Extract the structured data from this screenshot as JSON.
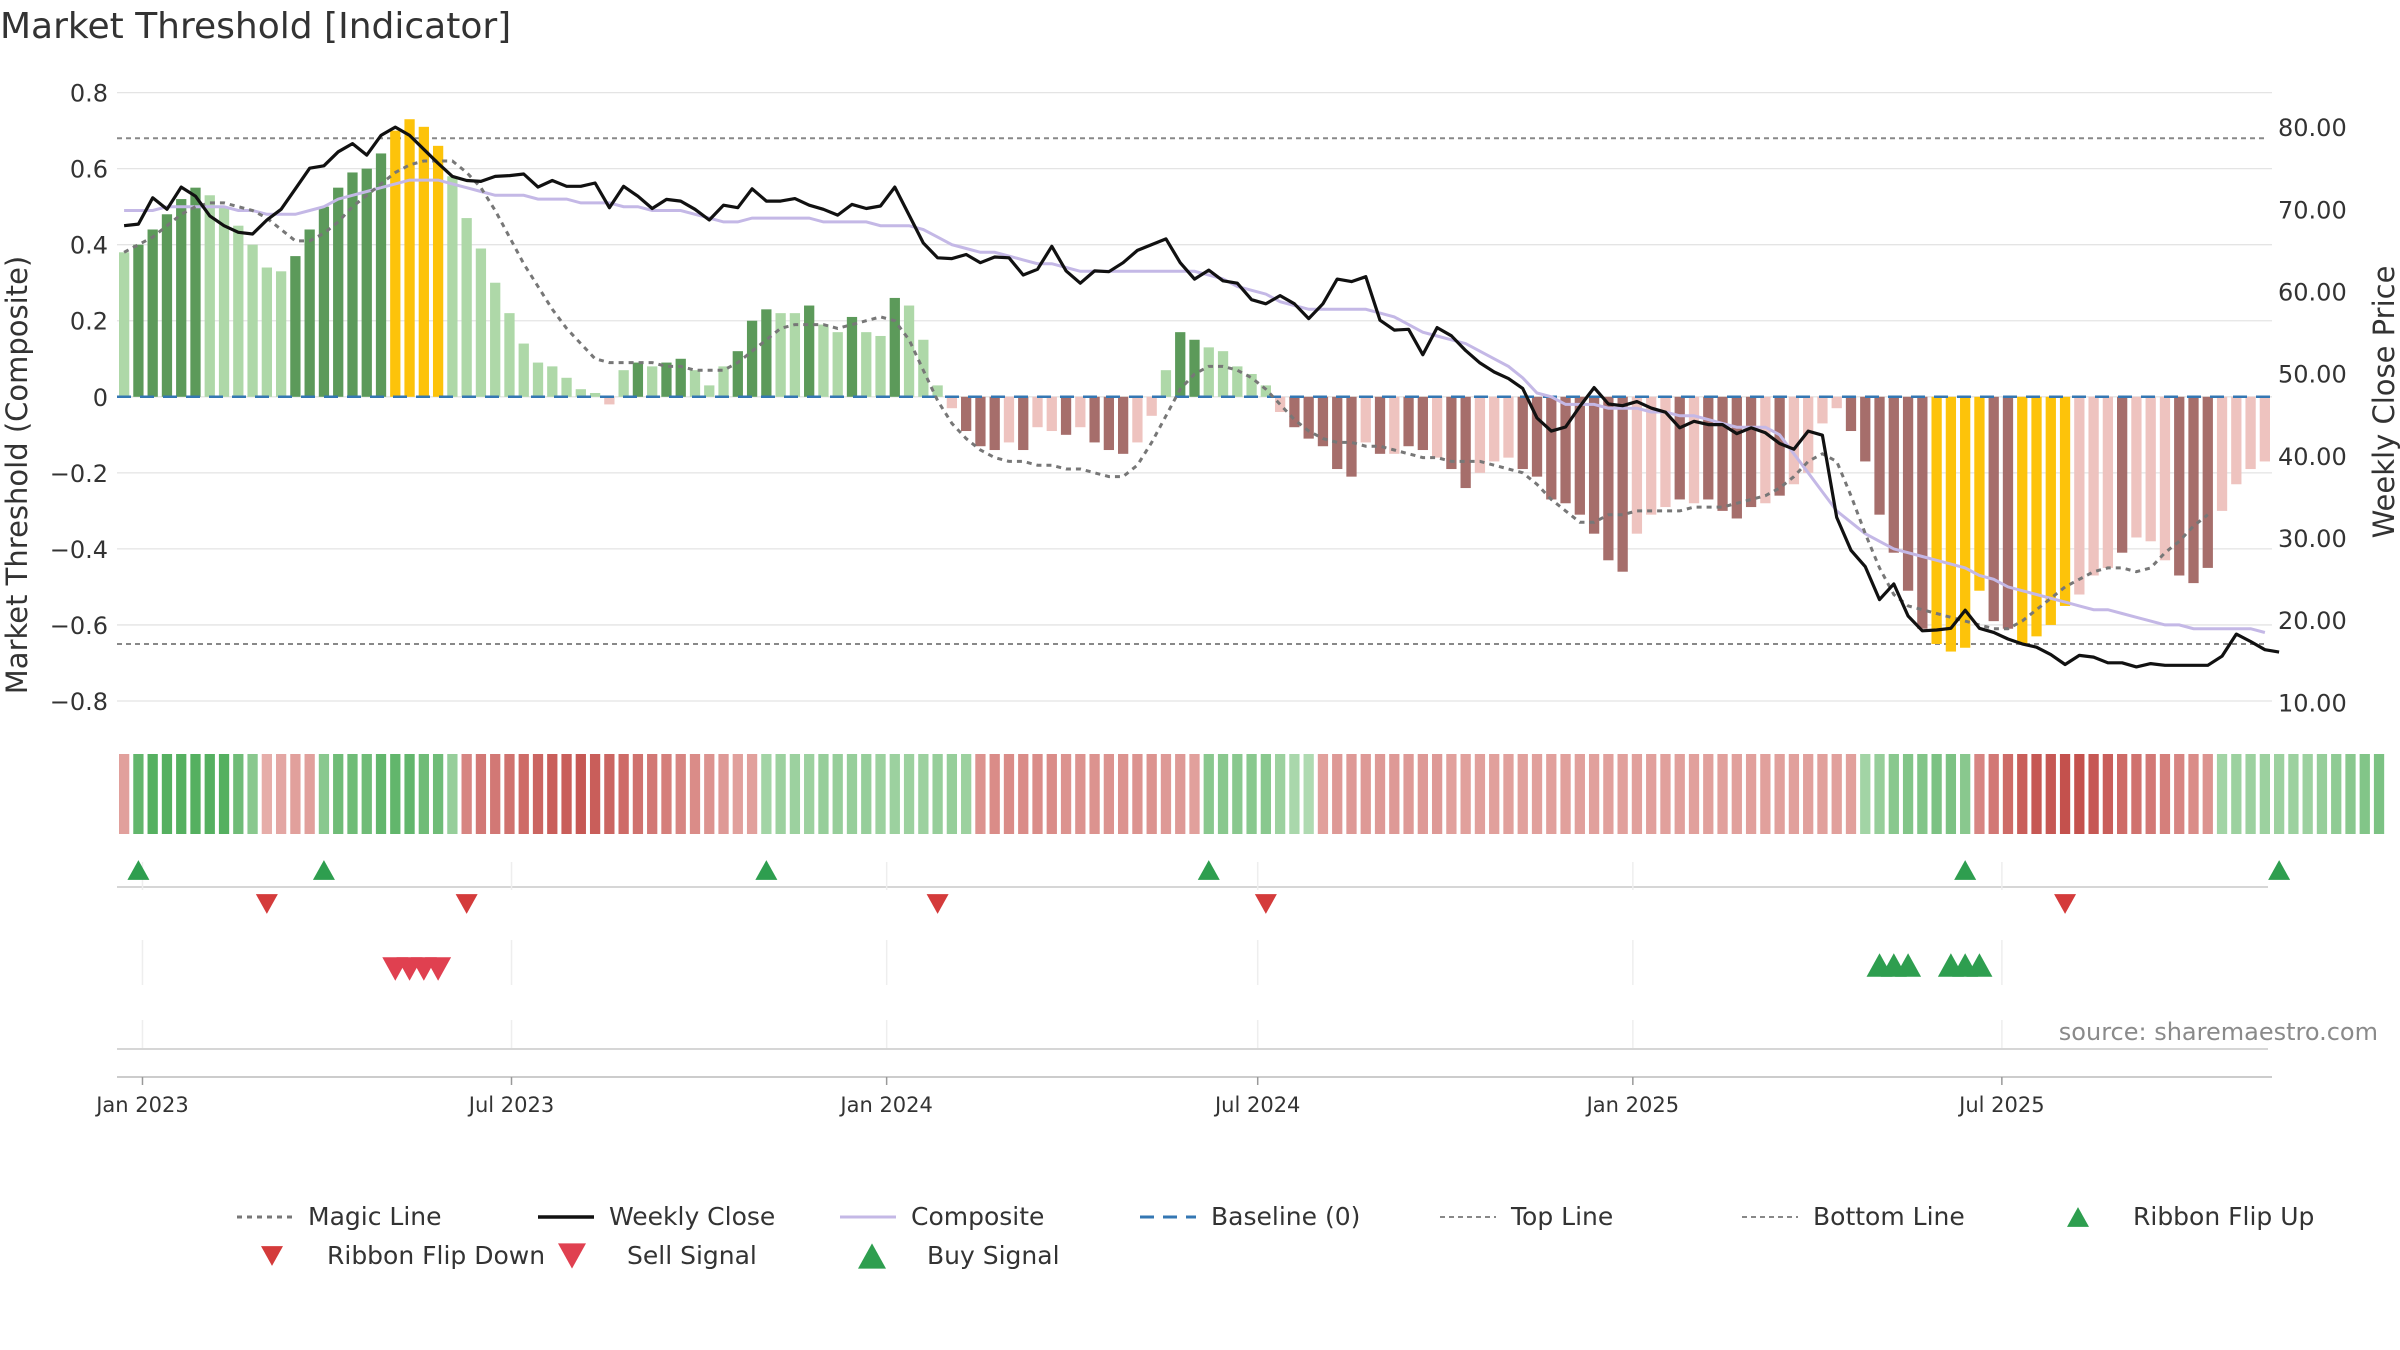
{
  "chart_data": {
    "type": "bar",
    "title": "Market Threshold [Indicator]",
    "ylabel_left": "Market Threshold (Composite)",
    "ylabel_right": "Weekly Close Price",
    "source_note": "source: sharemaestro.com",
    "ylim_left": [
      -0.85,
      0.82
    ],
    "ylim_right": [
      7.84,
      85.13
    ],
    "left_ticks": [
      {
        "v": 0.8,
        "label": "0.8"
      },
      {
        "v": 0.6,
        "label": "0.6"
      },
      {
        "v": 0.4,
        "label": "0.4"
      },
      {
        "v": 0.2,
        "label": "0.2"
      },
      {
        "v": 0,
        "label": "0"
      },
      {
        "v": -0.2,
        "label": "−0.2"
      },
      {
        "v": -0.4,
        "label": "−0.4"
      },
      {
        "v": -0.6,
        "label": "−0.6"
      },
      {
        "v": -0.8,
        "label": "−0.8"
      }
    ],
    "right_ticks": [
      {
        "v": 80,
        "label": "80.00"
      },
      {
        "v": 70,
        "label": "70.00"
      },
      {
        "v": 60,
        "label": "60.00"
      },
      {
        "v": 50,
        "label": "50.00"
      },
      {
        "v": 40,
        "label": "40.00"
      },
      {
        "v": 30,
        "label": "30.00"
      },
      {
        "v": 20,
        "label": "20.00"
      },
      {
        "v": 10,
        "label": "10.00"
      }
    ],
    "x_start": "2022-12-23",
    "x_ticks": [
      {
        "date": "2023-01-01",
        "label": "Jan 2023"
      },
      {
        "date": "2023-07-01",
        "label": "Jul 2023"
      },
      {
        "date": "2024-01-01",
        "label": "Jan 2024"
      },
      {
        "date": "2024-07-01",
        "label": "Jul 2024"
      },
      {
        "date": "2025-01-01",
        "label": "Jan 2025"
      },
      {
        "date": "2025-07-01",
        "label": "Jul 2025"
      }
    ],
    "top_line": 0.68,
    "bottom_line": -0.65,
    "baseline": 0,
    "colors": {
      "strong_up": "#5c9a5a",
      "weak_up": "#aed8a8",
      "strong_down": "#a66e6b",
      "weak_down": "#eec3bf",
      "extreme": "#fdc30a",
      "weekly_close": "#111111",
      "composite": "#c4b8e6",
      "magic": "#777777",
      "baseline": "#3477b3",
      "signal_up": "#2e9e4f",
      "signal_down": "#d43b3b",
      "sell": "#e04050"
    },
    "composite_bars": [
      0.38,
      0.4,
      0.44,
      0.48,
      0.52,
      0.55,
      0.53,
      0.5,
      0.45,
      0.4,
      0.34,
      0.33,
      0.37,
      0.44,
      0.5,
      0.55,
      0.59,
      0.6,
      0.64,
      0.7,
      0.73,
      0.71,
      0.66,
      0.58,
      0.47,
      0.39,
      0.3,
      0.22,
      0.14,
      0.09,
      0.08,
      0.05,
      0.02,
      0.01,
      -0.02,
      0.07,
      0.09,
      0.08,
      0.09,
      0.1,
      0.07,
      0.03,
      0.08,
      0.12,
      0.2,
      0.23,
      0.22,
      0.22,
      0.24,
      0.19,
      0.17,
      0.21,
      0.17,
      0.16,
      0.26,
      0.24,
      0.15,
      0.03,
      -0.03,
      -0.09,
      -0.13,
      -0.14,
      -0.12,
      -0.14,
      -0.08,
      -0.09,
      -0.1,
      -0.08,
      -0.12,
      -0.14,
      -0.15,
      -0.12,
      -0.05,
      0.07,
      0.17,
      0.15,
      0.13,
      0.12,
      0.08,
      0.06,
      0.03,
      -0.04,
      -0.08,
      -0.11,
      -0.13,
      -0.19,
      -0.21,
      -0.12,
      -0.15,
      -0.15,
      -0.13,
      -0.14,
      -0.16,
      -0.19,
      -0.24,
      -0.2,
      -0.17,
      -0.16,
      -0.19,
      -0.21,
      -0.27,
      -0.28,
      -0.31,
      -0.36,
      -0.43,
      -0.46,
      -0.36,
      -0.31,
      -0.29,
      -0.27,
      -0.28,
      -0.27,
      -0.3,
      -0.32,
      -0.29,
      -0.28,
      -0.26,
      -0.23,
      -0.2,
      -0.07,
      -0.03,
      -0.09,
      -0.17,
      -0.31,
      -0.41,
      -0.51,
      -0.61,
      -0.65,
      -0.67,
      -0.66,
      -0.51,
      -0.59,
      -0.61,
      -0.65,
      -0.63,
      -0.6,
      -0.55,
      -0.52,
      -0.47,
      -0.45,
      -0.41,
      -0.37,
      -0.38,
      -0.43,
      -0.47,
      -0.49,
      -0.45,
      -0.3,
      -0.23,
      -0.19,
      -0.17
    ],
    "bar_class": [
      "w",
      "s",
      "s",
      "s",
      "s",
      "s",
      "w",
      "w",
      "w",
      "w",
      "w",
      "w",
      "s",
      "s",
      "s",
      "s",
      "s",
      "s",
      "s",
      "x",
      "x",
      "x",
      "x",
      "w",
      "w",
      "w",
      "w",
      "w",
      "w",
      "w",
      "w",
      "w",
      "w",
      "w",
      "d",
      "w",
      "s",
      "w",
      "s",
      "s",
      "w",
      "w",
      "w",
      "s",
      "s",
      "s",
      "w",
      "w",
      "s",
      "w",
      "w",
      "s",
      "w",
      "w",
      "s",
      "w",
      "w",
      "w",
      "d",
      "D",
      "D",
      "D",
      "d",
      "D",
      "d",
      "d",
      "D",
      "d",
      "D",
      "D",
      "D",
      "d",
      "d",
      "w",
      "s",
      "s",
      "w",
      "w",
      "w",
      "w",
      "w",
      "d",
      "D",
      "D",
      "D",
      "D",
      "D",
      "d",
      "D",
      "d",
      "D",
      "D",
      "d",
      "D",
      "D",
      "d",
      "d",
      "d",
      "D",
      "D",
      "D",
      "D",
      "D",
      "D",
      "D",
      "D",
      "d",
      "d",
      "d",
      "D",
      "d",
      "D",
      "D",
      "D",
      "D",
      "d",
      "D",
      "d",
      "d",
      "d",
      "d",
      "D",
      "D",
      "D",
      "D",
      "D",
      "D",
      "x",
      "x",
      "x",
      "x",
      "D",
      "D",
      "x",
      "x",
      "x",
      "x",
      "d",
      "d",
      "d",
      "D",
      "d",
      "d",
      "d",
      "D",
      "D",
      "D",
      "d",
      "d",
      "d",
      "d"
    ],
    "weekly_close": [
      68,
      68.2,
      71.4,
      70,
      72.7,
      71.6,
      69.2,
      68,
      67.2,
      67,
      68.7,
      70,
      72.5,
      75,
      75.3,
      77,
      78,
      76.6,
      79,
      80,
      79,
      77.3,
      75.6,
      74,
      73.5,
      73.4,
      74,
      74.1,
      74.3,
      72.7,
      73.5,
      72.8,
      72.8,
      73.2,
      70.2,
      72.8,
      71.6,
      70.1,
      71.2,
      71,
      70,
      68.7,
      70.5,
      70.2,
      72.5,
      71,
      71,
      71.3,
      70.5,
      70,
      69.3,
      70.6,
      70.1,
      70.4,
      72.7,
      69.3,
      65.9,
      64.1,
      64,
      64.5,
      63.5,
      64.2,
      64.1,
      62,
      62.7,
      65.5,
      62.5,
      61,
      62.5,
      62.4,
      63.5,
      65,
      65.7,
      66.4,
      63.5,
      61.5,
      62.6,
      61.3,
      61,
      59,
      58.5,
      59.5,
      58.5,
      56.7,
      58.5,
      61.5,
      61.2,
      61.8,
      56.5,
      55.3,
      55.4,
      52.3,
      55.6,
      54.6,
      52.8,
      51.3,
      50.2,
      49.4,
      48.2,
      44.6,
      43,
      43.5,
      46,
      48.3,
      46.3,
      46.1,
      46.6,
      45.8,
      45.3,
      43.4,
      44.2,
      43.8,
      43.8,
      42.7,
      43.4,
      42.8,
      41.5,
      40.8,
      43,
      42.5,
      32.5,
      28.5,
      26.5,
      22.5,
      24.4,
      20.5,
      18.7,
      18.8,
      19,
      21.2,
      19,
      18.5,
      17.7,
      17.1,
      16.7,
      15.8,
      14.6,
      15.7,
      15.5,
      14.8,
      14.8,
      14.3,
      14.7,
      14.5,
      14.5,
      14.5,
      14.5,
      15.6,
      18.3,
      17.4,
      16.4,
      16.1
    ],
    "composite_line": [
      0.49,
      0.49,
      0.49,
      0.5,
      0.5,
      0.5,
      0.5,
      0.5,
      0.49,
      0.49,
      0.48,
      0.48,
      0.48,
      0.49,
      0.5,
      0.52,
      0.53,
      0.54,
      0.55,
      0.56,
      0.57,
      0.57,
      0.57,
      0.56,
      0.55,
      0.54,
      0.53,
      0.53,
      0.53,
      0.52,
      0.52,
      0.52,
      0.51,
      0.51,
      0.51,
      0.5,
      0.5,
      0.49,
      0.49,
      0.49,
      0.48,
      0.47,
      0.46,
      0.46,
      0.47,
      0.47,
      0.47,
      0.47,
      0.47,
      0.46,
      0.46,
      0.46,
      0.46,
      0.45,
      0.45,
      0.45,
      0.44,
      0.42,
      0.4,
      0.39,
      0.38,
      0.38,
      0.37,
      0.36,
      0.35,
      0.35,
      0.34,
      0.33,
      0.33,
      0.33,
      0.33,
      0.33,
      0.33,
      0.33,
      0.33,
      0.33,
      0.32,
      0.31,
      0.29,
      0.28,
      0.27,
      0.25,
      0.24,
      0.23,
      0.23,
      0.23,
      0.23,
      0.23,
      0.22,
      0.21,
      0.19,
      0.17,
      0.16,
      0.15,
      0.14,
      0.12,
      0.1,
      0.08,
      0.05,
      0.01,
      0,
      -0.02,
      -0.02,
      -0.02,
      -0.03,
      -0.03,
      -0.03,
      -0.04,
      -0.04,
      -0.05,
      -0.05,
      -0.06,
      -0.07,
      -0.08,
      -0.08,
      -0.08,
      -0.1,
      -0.15,
      -0.2,
      -0.25,
      -0.3,
      -0.33,
      -0.36,
      -0.38,
      -0.4,
      -0.41,
      -0.42,
      -0.43,
      -0.44,
      -0.45,
      -0.47,
      -0.48,
      -0.5,
      -0.51,
      -0.52,
      -0.53,
      -0.54,
      -0.55,
      -0.56,
      -0.56,
      -0.57,
      -0.58,
      -0.59,
      -0.6,
      -0.6,
      -0.61,
      -0.61,
      -0.61,
      -0.61,
      -0.61,
      -0.62
    ],
    "magic_line": [
      0.38,
      0.4,
      0.42,
      0.45,
      0.48,
      0.5,
      0.51,
      0.51,
      0.5,
      0.49,
      0.47,
      0.44,
      0.41,
      0.41,
      0.43,
      0.46,
      0.5,
      0.53,
      0.56,
      0.59,
      0.61,
      0.62,
      0.62,
      0.62,
      0.59,
      0.55,
      0.49,
      0.42,
      0.35,
      0.29,
      0.23,
      0.18,
      0.14,
      0.1,
      0.09,
      0.09,
      0.09,
      0.09,
      0.08,
      0.08,
      0.07,
      0.07,
      0.07,
      0.09,
      0.12,
      0.15,
      0.18,
      0.19,
      0.19,
      0.19,
      0.18,
      0.19,
      0.2,
      0.21,
      0.2,
      0.15,
      0.07,
      -0.01,
      -0.07,
      -0.11,
      -0.14,
      -0.16,
      -0.17,
      -0.17,
      -0.18,
      -0.18,
      -0.19,
      -0.19,
      -0.2,
      -0.21,
      -0.21,
      -0.18,
      -0.12,
      -0.05,
      0.02,
      0.06,
      0.08,
      0.08,
      0.07,
      0.05,
      0.02,
      -0.02,
      -0.06,
      -0.09,
      -0.11,
      -0.12,
      -0.12,
      -0.13,
      -0.13,
      -0.14,
      -0.15,
      -0.16,
      -0.16,
      -0.17,
      -0.17,
      -0.17,
      -0.18,
      -0.19,
      -0.2,
      -0.23,
      -0.27,
      -0.3,
      -0.33,
      -0.33,
      -0.31,
      -0.31,
      -0.3,
      -0.3,
      -0.3,
      -0.3,
      -0.29,
      -0.29,
      -0.29,
      -0.28,
      -0.27,
      -0.26,
      -0.24,
      -0.21,
      -0.17,
      -0.15,
      -0.17,
      -0.26,
      -0.36,
      -0.45,
      -0.52,
      -0.55,
      -0.56,
      -0.57,
      -0.58,
      -0.59,
      -0.6,
      -0.61,
      -0.61,
      -0.59,
      -0.56,
      -0.53,
      -0.5,
      -0.48,
      -0.46,
      -0.45,
      -0.45,
      -0.46,
      -0.45,
      -0.41,
      -0.38,
      -0.34,
      -0.31
    ],
    "ribbon": [
      -0.4,
      0.9,
      1,
      1,
      1,
      1,
      1,
      1,
      0.8,
      0.6,
      -0.3,
      -0.35,
      -0.4,
      -0.4,
      0.6,
      0.8,
      0.8,
      0.8,
      0.9,
      0.9,
      0.9,
      0.8,
      0.8,
      0.5,
      -0.6,
      -0.7,
      -0.7,
      -0.75,
      -0.8,
      -0.85,
      -0.9,
      -0.9,
      -0.95,
      -0.9,
      -0.85,
      -0.8,
      -0.75,
      -0.7,
      -0.65,
      -0.6,
      -0.55,
      -0.5,
      -0.45,
      -0.4,
      -0.4,
      0.4,
      0.45,
      0.45,
      0.45,
      0.5,
      0.5,
      0.5,
      0.5,
      0.45,
      0.45,
      0.45,
      0.45,
      0.5,
      0.5,
      0.45,
      -0.5,
      -0.55,
      -0.55,
      -0.55,
      -0.55,
      -0.55,
      -0.5,
      -0.5,
      -0.5,
      -0.5,
      -0.5,
      -0.5,
      -0.5,
      -0.45,
      -0.45,
      -0.4,
      0.6,
      0.6,
      0.6,
      0.6,
      0.6,
      0.45,
      0.35,
      0.3,
      -0.4,
      -0.45,
      -0.45,
      -0.45,
      -0.45,
      -0.45,
      -0.45,
      -0.45,
      -0.45,
      -0.4,
      -0.4,
      -0.4,
      -0.4,
      -0.4,
      -0.4,
      -0.4,
      -0.4,
      -0.4,
      -0.4,
      -0.4,
      -0.4,
      -0.4,
      -0.4,
      -0.4,
      -0.4,
      -0.4,
      -0.4,
      -0.4,
      -0.4,
      -0.4,
      -0.4,
      -0.4,
      -0.4,
      -0.4,
      -0.4,
      -0.4,
      -0.4,
      -0.4,
      0.4,
      0.5,
      0.6,
      0.65,
      0.65,
      0.7,
      0.7,
      0.6,
      -0.6,
      -0.7,
      -0.8,
      -0.9,
      -0.95,
      -0.95,
      -1,
      -1,
      -0.95,
      -0.9,
      -0.8,
      -0.75,
      -0.7,
      -0.65,
      -0.6,
      -0.55,
      -0.5,
      0.4,
      0.45,
      0.45,
      0.45,
      0.45,
      0.45,
      0.45,
      0.5,
      0.55,
      0.6,
      0.65,
      0.7
    ],
    "ribbon_flip_up_idx": [
      1,
      14,
      45,
      76,
      129,
      151
    ],
    "ribbon_flip_down_idx": [
      10,
      24,
      57,
      80,
      136
    ],
    "sell_signal_idx": [
      19,
      20,
      21,
      22
    ],
    "buy_signal_idx": [
      123,
      124,
      125,
      128,
      129,
      130
    ],
    "legend": [
      {
        "label": "Magic Line",
        "symbol": "dotted",
        "color": "#777777"
      },
      {
        "label": "Weekly Close",
        "symbol": "solid",
        "color": "#111111"
      },
      {
        "label": "Composite",
        "symbol": "solid-light",
        "color": "#c4b8e6"
      },
      {
        "label": "Baseline (0)",
        "symbol": "dashed",
        "color": "#3477b3"
      },
      {
        "label": "Top Line",
        "symbol": "fine-dotted",
        "color": "#888888"
      },
      {
        "label": "Bottom Line",
        "symbol": "fine-dotted",
        "color": "#888888"
      },
      {
        "label": "Ribbon Flip Up",
        "symbol": "tri-up-small",
        "color": "#2e9e4f"
      },
      {
        "label": "Ribbon Flip Down",
        "symbol": "tri-down-small",
        "color": "#d43b3b"
      },
      {
        "label": "Sell Signal",
        "symbol": "tri-down",
        "color": "#e04050"
      },
      {
        "label": "Buy Signal",
        "symbol": "tri-up",
        "color": "#2e9e4f"
      }
    ]
  }
}
